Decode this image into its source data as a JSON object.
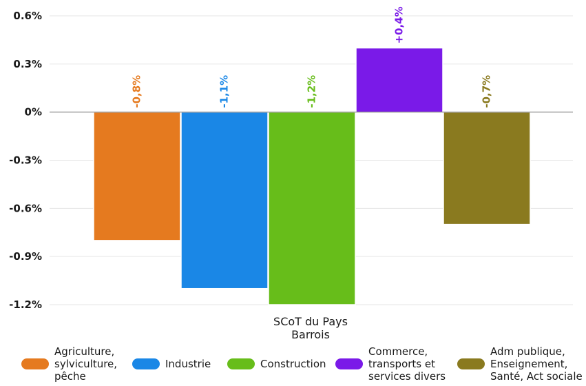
{
  "chart_data": {
    "type": "bar",
    "categories": [
      "SCoT du Pays Barrois"
    ],
    "category_label_lines": [
      "SCoT du Pays",
      "Barrois"
    ],
    "ylim": [
      -1.2,
      0.6
    ],
    "yticks": [
      0.6,
      0.3,
      0,
      -0.3,
      -0.6,
      -0.9,
      -1.2
    ],
    "ytick_labels": [
      "0.6%",
      "0.3%",
      "0%",
      "-0.3%",
      "-0.6%",
      "-0.9%",
      "-1.2%"
    ],
    "grid": true,
    "legend_position": "bottom",
    "series": [
      {
        "name": "Agriculture, sylviculture, pêche",
        "legend_lines": [
          "Agriculture,",
          "sylviculture,",
          "pêche"
        ],
        "values": [
          -0.8
        ],
        "label": "-0,8%",
        "color": "#e57a1f"
      },
      {
        "name": "Industrie",
        "legend_lines": [
          "Industrie"
        ],
        "values": [
          -1.1
        ],
        "label": "-1,1%",
        "color": "#1a87e6"
      },
      {
        "name": "Construction",
        "legend_lines": [
          "Construction"
        ],
        "values": [
          -1.2
        ],
        "label": "-1,2%",
        "color": "#67bd1a"
      },
      {
        "name": "Commerce, transports et services divers",
        "legend_lines": [
          "Commerce,",
          "transports et",
          "services divers"
        ],
        "values": [
          0.4
        ],
        "label": "+0,4%",
        "color": "#7a1ae8"
      },
      {
        "name": "Adm publique, Enseignement, Santé, Act sociale",
        "legend_lines": [
          "Adm publique,",
          "Enseignement,",
          "Santé, Act sociale"
        ],
        "values": [
          -0.7
        ],
        "label": "-0,7%",
        "color": "#8a7a1f"
      }
    ]
  }
}
